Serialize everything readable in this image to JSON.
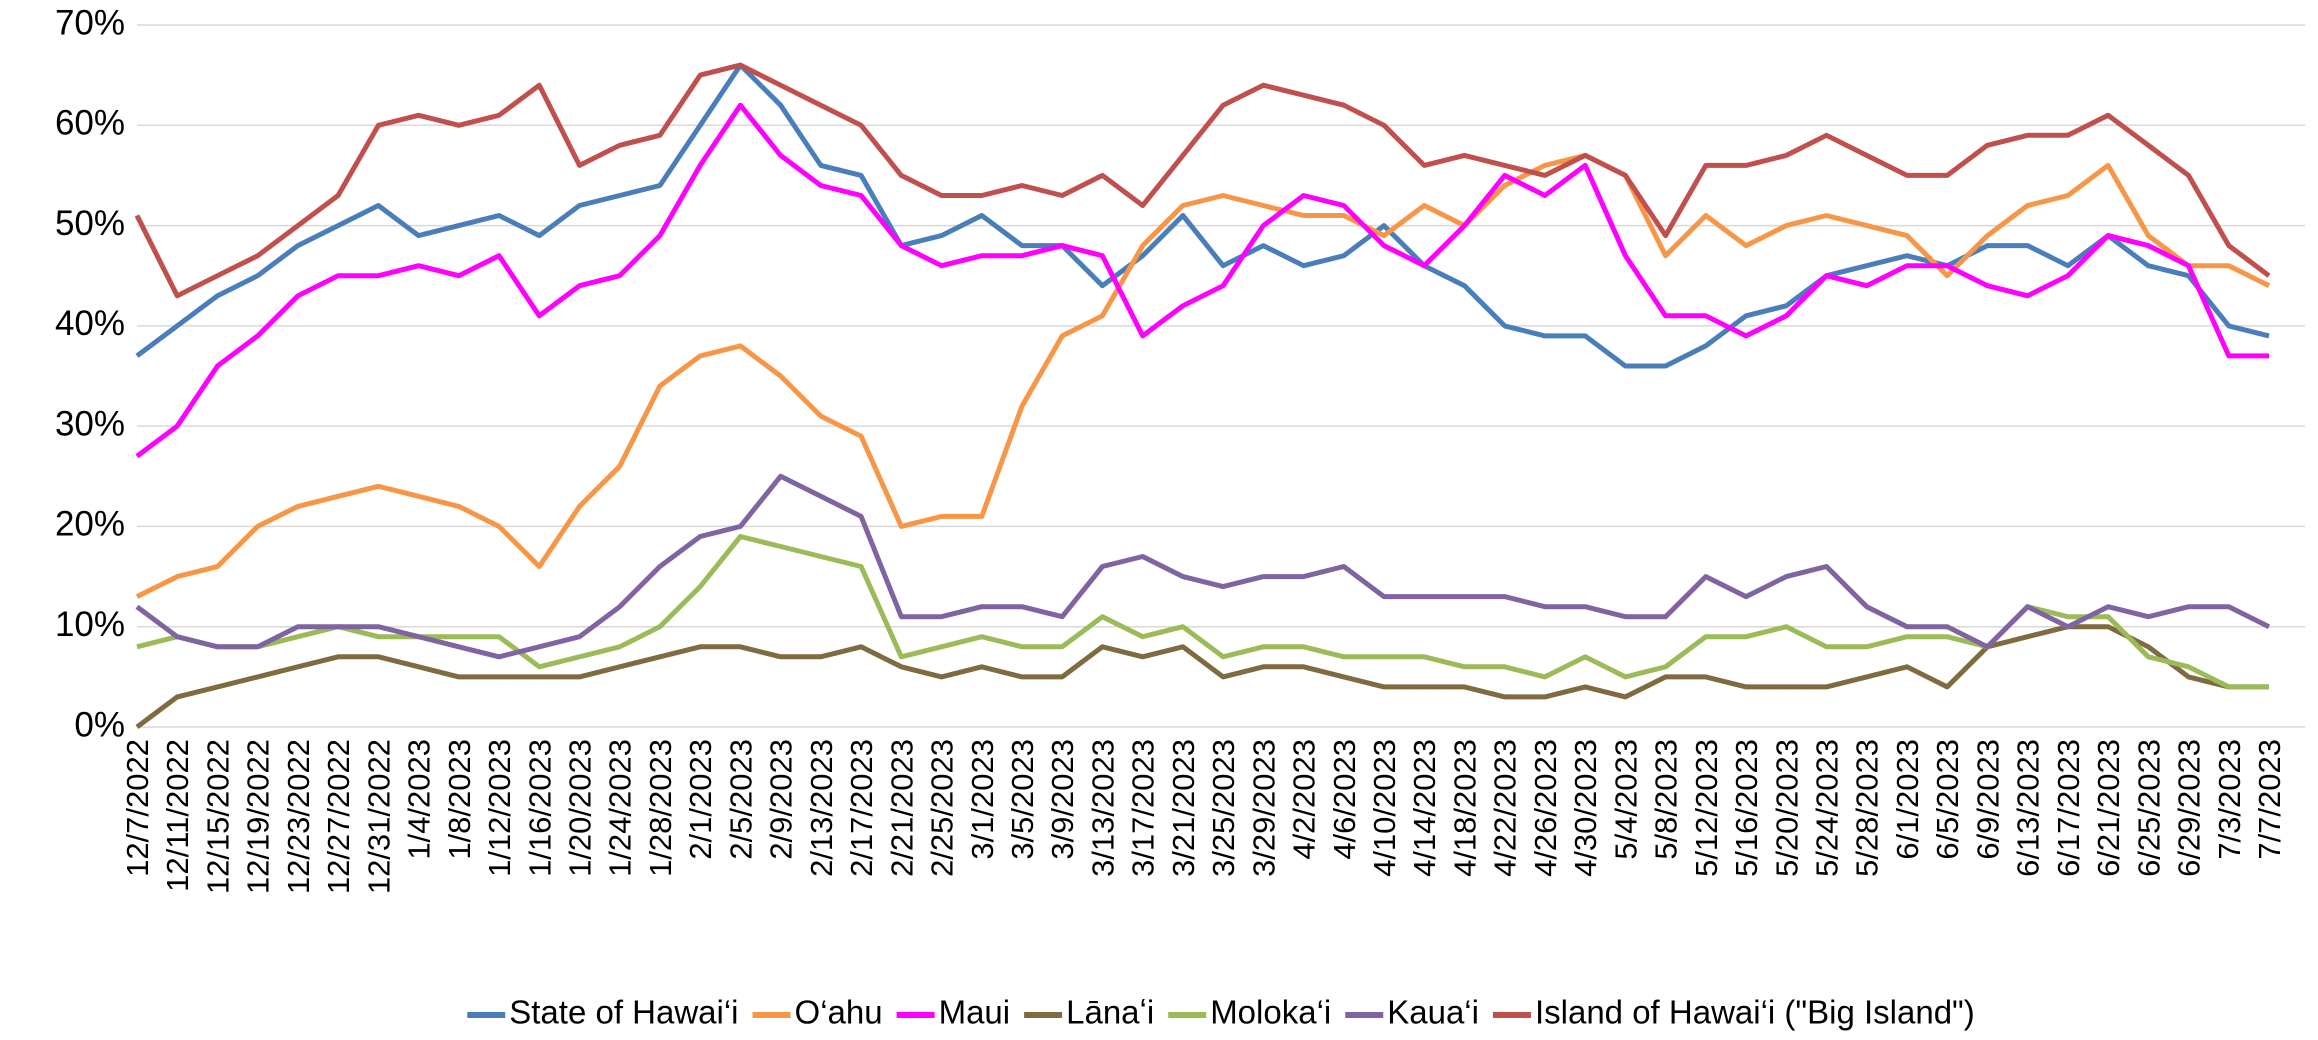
{
  "chart_data": {
    "type": "line",
    "categories": [
      "12/7/2022",
      "12/11/2022",
      "12/15/2022",
      "12/19/2022",
      "12/23/2022",
      "12/27/2022",
      "12/31/2022",
      "1/4/2023",
      "1/8/2023",
      "1/12/2023",
      "1/16/2023",
      "1/20/2023",
      "1/24/2023",
      "1/28/2023",
      "2/1/2023",
      "2/5/2023",
      "2/9/2023",
      "2/13/2023",
      "2/17/2023",
      "2/21/2023",
      "2/25/2023",
      "3/1/2023",
      "3/5/2023",
      "3/9/2023",
      "3/13/2023",
      "3/17/2023",
      "3/21/2023",
      "3/25/2023",
      "3/29/2023",
      "4/2/2023",
      "4/6/2023",
      "4/10/2023",
      "4/14/2023",
      "4/18/2023",
      "4/22/2023",
      "4/26/2023",
      "4/30/2023",
      "5/4/2023",
      "5/8/2023",
      "5/12/2023",
      "5/16/2023",
      "5/20/2023",
      "5/24/2023",
      "5/28/2023",
      "6/1/2023",
      "6/5/2023",
      "6/9/2023",
      "6/13/2023",
      "6/17/2023",
      "6/21/2023",
      "6/25/2023",
      "6/29/2023",
      "7/3/2023",
      "7/7/2023"
    ],
    "series": [
      {
        "name": "State of Hawai‘i",
        "color": "#4a7ebb",
        "values": [
          37,
          40,
          43,
          45,
          48,
          50,
          52,
          49,
          50,
          51,
          49,
          52,
          53,
          54,
          60,
          66,
          62,
          56,
          55,
          48,
          49,
          51,
          48,
          48,
          44,
          47,
          51,
          46,
          48,
          46,
          47,
          50,
          46,
          44,
          40,
          39,
          39,
          36,
          36,
          38,
          41,
          42,
          45,
          46,
          47,
          46,
          48,
          48,
          46,
          49,
          46,
          45,
          40,
          39
        ]
      },
      {
        "name": "O‘ahu",
        "color": "#f79646",
        "values": [
          13,
          15,
          16,
          20,
          22,
          23,
          24,
          23,
          22,
          20,
          16,
          22,
          26,
          34,
          37,
          38,
          35,
          31,
          29,
          20,
          21,
          21,
          32,
          39,
          41,
          48,
          52,
          53,
          52,
          51,
          51,
          49,
          52,
          50,
          54,
          56,
          57,
          55,
          47,
          51,
          48,
          50,
          51,
          50,
          49,
          45,
          49,
          52,
          53,
          56,
          49,
          46,
          46,
          44
        ]
      },
      {
        "name": "Maui",
        "color": "#ff00ff",
        "values": [
          27,
          30,
          36,
          39,
          43,
          45,
          45,
          46,
          45,
          47,
          41,
          44,
          45,
          49,
          56,
          62,
          57,
          54,
          53,
          48,
          46,
          47,
          47,
          48,
          47,
          39,
          42,
          44,
          50,
          53,
          52,
          48,
          46,
          50,
          55,
          53,
          56,
          47,
          41,
          41,
          39,
          41,
          45,
          44,
          46,
          46,
          44,
          43,
          45,
          49,
          48,
          46,
          37,
          37
        ]
      },
      {
        "name": "Lānaʻi",
        "color": "#7f6b3f",
        "values": [
          0,
          3,
          4,
          5,
          6,
          7,
          7,
          6,
          5,
          5,
          5,
          5,
          6,
          7,
          8,
          8,
          7,
          7,
          8,
          6,
          5,
          6,
          5,
          5,
          8,
          7,
          8,
          5,
          6,
          6,
          5,
          4,
          4,
          4,
          3,
          3,
          4,
          3,
          5,
          5,
          4,
          4,
          4,
          5,
          6,
          4,
          8,
          9,
          10,
          10,
          8,
          5,
          4,
          4
        ]
      },
      {
        "name": "Moloka‘i",
        "color": "#9bbb59",
        "values": [
          8,
          9,
          8,
          8,
          9,
          10,
          9,
          9,
          9,
          9,
          6,
          7,
          8,
          10,
          14,
          19,
          18,
          17,
          16,
          7,
          8,
          9,
          8,
          8,
          11,
          9,
          10,
          7,
          8,
          8,
          7,
          7,
          7,
          6,
          6,
          5,
          7,
          5,
          6,
          9,
          9,
          10,
          8,
          8,
          9,
          9,
          8,
          12,
          11,
          11,
          7,
          6,
          4,
          4
        ]
      },
      {
        "name": "Kaua‘i",
        "color": "#8064a2",
        "values": [
          12,
          9,
          8,
          8,
          10,
          10,
          10,
          9,
          8,
          7,
          8,
          9,
          12,
          16,
          19,
          20,
          25,
          23,
          21,
          11,
          11,
          12,
          12,
          11,
          16,
          17,
          15,
          14,
          15,
          15,
          16,
          13,
          13,
          13,
          13,
          12,
          12,
          11,
          11,
          15,
          13,
          15,
          16,
          12,
          10,
          10,
          8,
          12,
          10,
          12,
          11,
          12,
          12,
          10
        ]
      },
      {
        "name": "Island of Hawai‘i (\"Big Island\")",
        "color": "#c0504d",
        "values": [
          51,
          43,
          45,
          47,
          50,
          53,
          60,
          61,
          60,
          61,
          64,
          56,
          58,
          59,
          65,
          66,
          64,
          62,
          60,
          55,
          53,
          53,
          54,
          53,
          55,
          52,
          57,
          62,
          64,
          63,
          62,
          60,
          56,
          57,
          56,
          55,
          57,
          55,
          49,
          56,
          56,
          57,
          59,
          57,
          55,
          55,
          58,
          59,
          59,
          61,
          58,
          55,
          48,
          45
        ]
      }
    ],
    "ylim": [
      0,
      70
    ],
    "yticks": [
      {
        "value": 0,
        "label": "0%"
      },
      {
        "value": 10,
        "label": "10%"
      },
      {
        "value": 20,
        "label": "20%"
      },
      {
        "value": 30,
        "label": "30%"
      },
      {
        "value": 40,
        "label": "40%"
      },
      {
        "value": 50,
        "label": "50%"
      },
      {
        "value": 60,
        "label": "60%"
      },
      {
        "value": 70,
        "label": "70%"
      }
    ],
    "grid": true,
    "legend": "bottom"
  }
}
